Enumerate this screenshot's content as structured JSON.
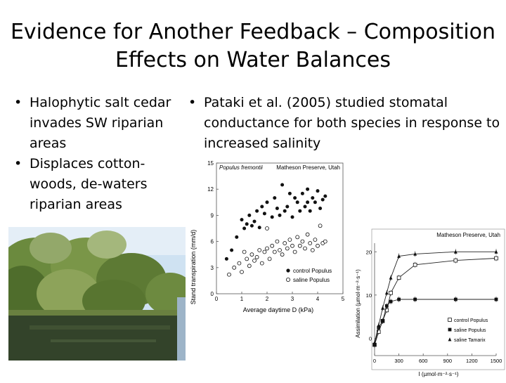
{
  "slide": {
    "title_lines": [
      "Evidence for Another Feedback – Composition",
      "Effects on Water Balances"
    ],
    "left_bullets": [
      "Halophytic salt cedar invades SW riparian areas",
      "Displaces cotton-woods, de-waters riparian areas"
    ],
    "right_bullets": [
      "Pataki et al. (2005) studied stomatal conductance for both species in response to increased salinity"
    ]
  },
  "photo": {
    "icon": "riparian-photo",
    "colors": {
      "sky": "#cfe2f2",
      "vegetation": "#5f7f38",
      "water": "#2e3b22"
    }
  },
  "chart_data": [
    {
      "type": "scatter",
      "inset_label": "Populus fremontii",
      "site": "Matheson Preserve, Utah",
      "xlabel": "Average daytime D (kPa)",
      "ylabel": "Stand transpiration (mm/d)",
      "xlim": [
        0,
        5
      ],
      "ylim": [
        0,
        15
      ],
      "xticks": [
        "0",
        "1",
        "2",
        "3",
        "4",
        "5"
      ],
      "yticks": [
        "0",
        "3",
        "6",
        "9",
        "12",
        "15"
      ],
      "legend_position": "bottom-right",
      "series": [
        {
          "name": "control Populus",
          "marker": "filled-circle",
          "points": [
            [
              0.4,
              4.0
            ],
            [
              0.6,
              5.0
            ],
            [
              0.8,
              6.5
            ],
            [
              1.0,
              8.5
            ],
            [
              1.1,
              7.5
            ],
            [
              1.2,
              8.0
            ],
            [
              1.3,
              9.0
            ],
            [
              1.4,
              7.8
            ],
            [
              1.5,
              8.3
            ],
            [
              1.6,
              9.5
            ],
            [
              1.7,
              7.6
            ],
            [
              1.8,
              10.0
            ],
            [
              1.9,
              9.2
            ],
            [
              2.0,
              10.5
            ],
            [
              2.2,
              8.8
            ],
            [
              2.3,
              11.0
            ],
            [
              2.5,
              9.0
            ],
            [
              2.6,
              12.5
            ],
            [
              2.7,
              9.5
            ],
            [
              2.8,
              10.0
            ],
            [
              2.9,
              11.5
            ],
            [
              3.0,
              8.8
            ],
            [
              3.1,
              11.0
            ],
            [
              3.2,
              10.5
            ],
            [
              3.3,
              9.5
            ],
            [
              3.4,
              11.5
            ],
            [
              3.5,
              10.0
            ],
            [
              3.6,
              12.0
            ],
            [
              3.7,
              9.5
            ],
            [
              3.8,
              11.0
            ],
            [
              3.9,
              10.5
            ],
            [
              4.0,
              11.8
            ],
            [
              4.1,
              9.8
            ],
            [
              4.2,
              10.8
            ],
            [
              4.3,
              11.2
            ],
            [
              3.6,
              10.5
            ],
            [
              2.4,
              9.8
            ]
          ]
        },
        {
          "name": "saline Populus",
          "marker": "open-circle",
          "points": [
            [
              0.5,
              2.2
            ],
            [
              0.7,
              3.0
            ],
            [
              0.9,
              3.5
            ],
            [
              1.0,
              2.5
            ],
            [
              1.2,
              4.0
            ],
            [
              1.3,
              3.2
            ],
            [
              1.4,
              4.5
            ],
            [
              1.5,
              3.8
            ],
            [
              1.6,
              4.2
            ],
            [
              1.7,
              5.0
            ],
            [
              1.8,
              3.5
            ],
            [
              1.9,
              4.8
            ],
            [
              2.0,
              5.2
            ],
            [
              2.1,
              4.0
            ],
            [
              2.2,
              5.5
            ],
            [
              2.3,
              4.8
            ],
            [
              2.4,
              6.0
            ],
            [
              2.5,
              5.0
            ],
            [
              2.6,
              4.5
            ],
            [
              2.7,
              5.8
            ],
            [
              2.8,
              5.2
            ],
            [
              2.9,
              6.2
            ],
            [
              3.0,
              5.5
            ],
            [
              3.1,
              4.8
            ],
            [
              3.2,
              6.5
            ],
            [
              3.3,
              5.5
            ],
            [
              3.4,
              6.0
            ],
            [
              3.5,
              5.2
            ],
            [
              3.6,
              6.8
            ],
            [
              3.7,
              5.8
            ],
            [
              3.8,
              5.0
            ],
            [
              3.9,
              6.2
            ],
            [
              4.0,
              5.5
            ],
            [
              4.1,
              7.8
            ],
            [
              4.2,
              5.8
            ],
            [
              4.3,
              6.0
            ],
            [
              2.0,
              7.5
            ],
            [
              1.1,
              4.8
            ]
          ]
        }
      ]
    },
    {
      "type": "line",
      "site": "Matheson Preserve, Utah",
      "xlabel": "I (µmol·m⁻²·s⁻¹)",
      "ylabel": "Assimilation (µmol·m⁻²·s⁻¹)",
      "xlim": [
        0,
        1500
      ],
      "ylim": [
        0,
        22
      ],
      "xticks": [
        "0",
        "300",
        "600",
        "900",
        "1200",
        "1500"
      ],
      "yticks": [
        "0",
        "10",
        "20"
      ],
      "legend_position": "bottom-right",
      "series": [
        {
          "name": "control Populus",
          "marker": "open-square",
          "x": [
            0,
            50,
            100,
            150,
            200,
            300,
            500,
            1000,
            1500
          ],
          "y": [
            -1.5,
            1.5,
            4.0,
            6.5,
            10.5,
            14.0,
            17.0,
            18.0,
            18.5
          ]
        },
        {
          "name": "saline Populus",
          "marker": "filled-square",
          "x": [
            0,
            50,
            100,
            150,
            200,
            300,
            500,
            1000,
            1500
          ],
          "y": [
            -1.5,
            2.5,
            4.0,
            7.5,
            8.5,
            9.0,
            9.0,
            9.0,
            9.0
          ]
        },
        {
          "name": "saline Tamarix",
          "marker": "filled-triangle",
          "x": [
            0,
            50,
            100,
            150,
            200,
            300,
            500,
            1000,
            1500
          ],
          "y": [
            -1.0,
            3.0,
            7.0,
            10.5,
            14.0,
            19.0,
            19.5,
            20.0,
            20.0
          ]
        }
      ]
    }
  ]
}
